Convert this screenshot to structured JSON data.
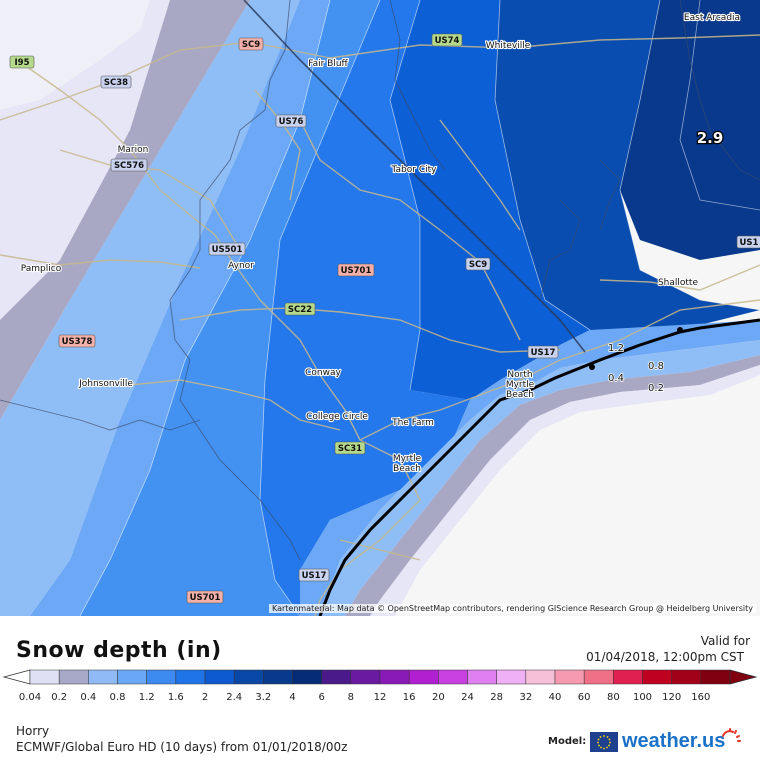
{
  "map": {
    "places": [
      {
        "name": "East Arcadia"
      },
      {
        "name": "Whiteville"
      },
      {
        "name": "Fair Bluff"
      },
      {
        "name": "Marion"
      },
      {
        "name": "Tabor City"
      },
      {
        "name": "Aynor"
      },
      {
        "name": "Pamplico"
      },
      {
        "name": "Shallotte"
      },
      {
        "name": "Conway"
      },
      {
        "name": "Johnsonville"
      },
      {
        "name": "North"
      },
      {
        "name": "Myrtle"
      },
      {
        "name": "Beach"
      },
      {
        "name": "College Circle"
      },
      {
        "name": "The Farm"
      },
      {
        "name": "Myrtle"
      },
      {
        "name": "Beach"
      }
    ],
    "shields": [
      {
        "label": "I95",
        "color": "#b5d98a"
      },
      {
        "label": "SC9",
        "color": "#f4b0a8"
      },
      {
        "label": "US74",
        "color": "#b5d98a"
      },
      {
        "label": "SC38",
        "color": "#c8d2ee"
      },
      {
        "label": "US76",
        "color": "#c8d2ee"
      },
      {
        "label": "SC576",
        "color": "#c8d2ee"
      },
      {
        "label": "US501",
        "color": "#c8d2ee"
      },
      {
        "label": "US701",
        "color": "#f4b0a8"
      },
      {
        "label": "SC9",
        "color": "#c8d2ee"
      },
      {
        "label": "SC22",
        "color": "#b5d98a"
      },
      {
        "label": "US378",
        "color": "#f4b0a8"
      },
      {
        "label": "US17",
        "color": "#c8d2ee"
      },
      {
        "label": "SC31",
        "color": "#b5d98a"
      },
      {
        "label": "US17",
        "color": "#c8d2ee"
      },
      {
        "label": "US701",
        "color": "#f4b0a8"
      },
      {
        "label": "US1",
        "color": "#c8d2ee"
      }
    ],
    "max_value_label": "2.9",
    "contour_labels": [
      "1.2",
      "0.8",
      "0.4",
      "0.2"
    ],
    "attribution": "Kartenmaterial: Map data © OpenStreetMap contributors, rendering GIScience Research Group @ Heidelberg University"
  },
  "legend": {
    "title": "Snow depth (in)",
    "valid_label": "Valid for",
    "valid_date": "01/04/2018, 12:00pm CST",
    "region": "Horry",
    "model_line": "ECMWF/Global Euro HD (10 days) from 01/01/2018/00z",
    "model_label": "Model:",
    "brand": "weather.us",
    "scale": [
      {
        "label": "0.04",
        "color": "#e0e0f5"
      },
      {
        "label": "0.2",
        "color": "#a8a8c8"
      },
      {
        "label": "0.4",
        "color": "#8fbaf5"
      },
      {
        "label": "0.8",
        "color": "#6aa8f5"
      },
      {
        "label": "1.2",
        "color": "#3d8af0"
      },
      {
        "label": "1.6",
        "color": "#1f74e8"
      },
      {
        "label": "2",
        "color": "#0d5ad0"
      },
      {
        "label": "2.4",
        "color": "#0a48a8"
      },
      {
        "label": "3.2",
        "color": "#083a8c"
      },
      {
        "label": "4",
        "color": "#062c78"
      },
      {
        "label": "6",
        "color": "#4a1a8a"
      },
      {
        "label": "8",
        "color": "#6a1aa0"
      },
      {
        "label": "12",
        "color": "#8a1ab8"
      },
      {
        "label": "16",
        "color": "#b020d0"
      },
      {
        "label": "20",
        "color": "#c840e0"
      },
      {
        "label": "24",
        "color": "#e080f0"
      },
      {
        "label": "28",
        "color": "#f0b0f5"
      },
      {
        "label": "32",
        "color": "#f5c0d8"
      },
      {
        "label": "40",
        "color": "#f59ab0"
      },
      {
        "label": "60",
        "color": "#f07088"
      },
      {
        "label": "80",
        "color": "#e02050"
      },
      {
        "label": "100",
        "color": "#c00020"
      },
      {
        "label": "120",
        "color": "#a00018"
      },
      {
        "label": "160",
        "color": "#800010"
      }
    ]
  }
}
